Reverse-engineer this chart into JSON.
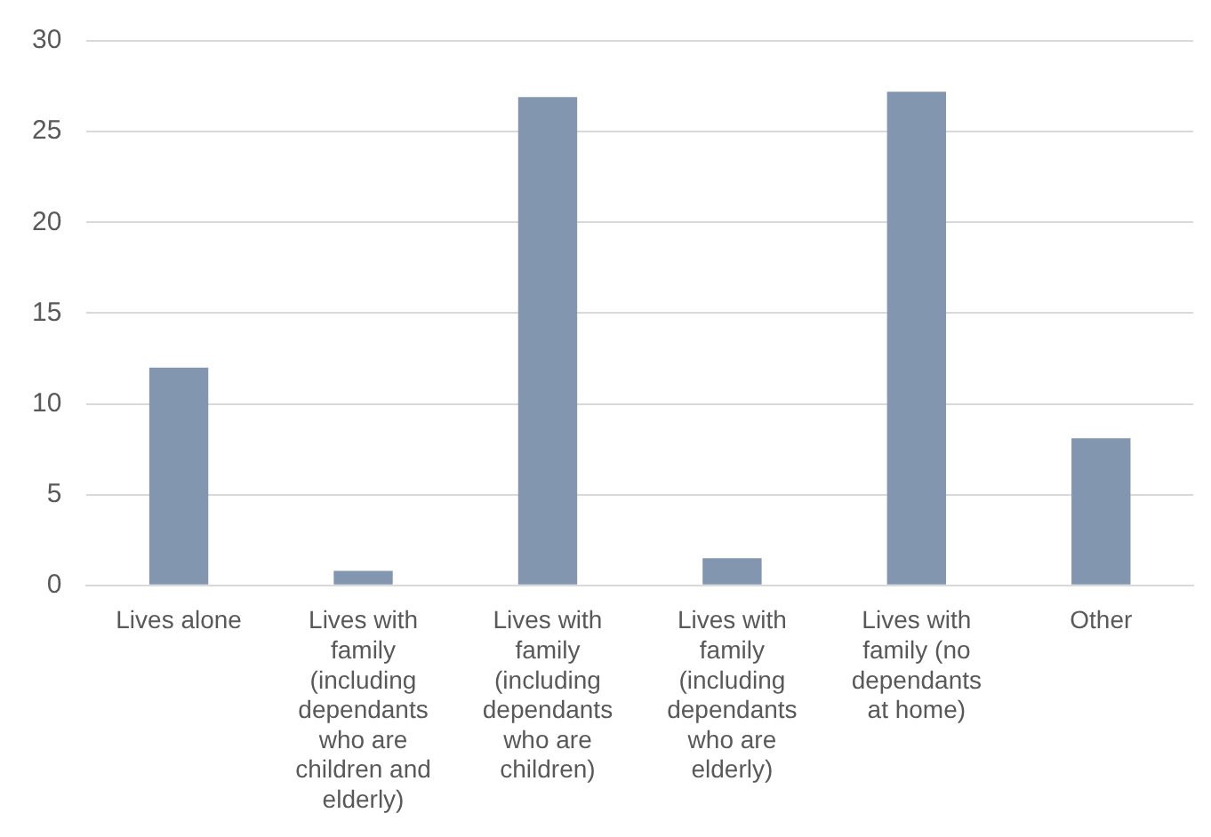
{
  "chart_data": {
    "type": "bar",
    "categories": [
      "Lives alone",
      "Lives with family (including dependants who are children and elderly)",
      "Lives with family (including dependants who are children)",
      "Lives with family (including dependants who are elderly)",
      "Lives with family (no dependants at home)",
      "Other"
    ],
    "values": [
      12,
      0.8,
      26.9,
      1.5,
      27.2,
      8.1
    ],
    "color": "#8296b0",
    "ylim": [
      0,
      30
    ],
    "yticks": [
      0,
      5,
      10,
      15,
      20,
      25,
      30
    ],
    "grid": "y",
    "legend": false
  }
}
